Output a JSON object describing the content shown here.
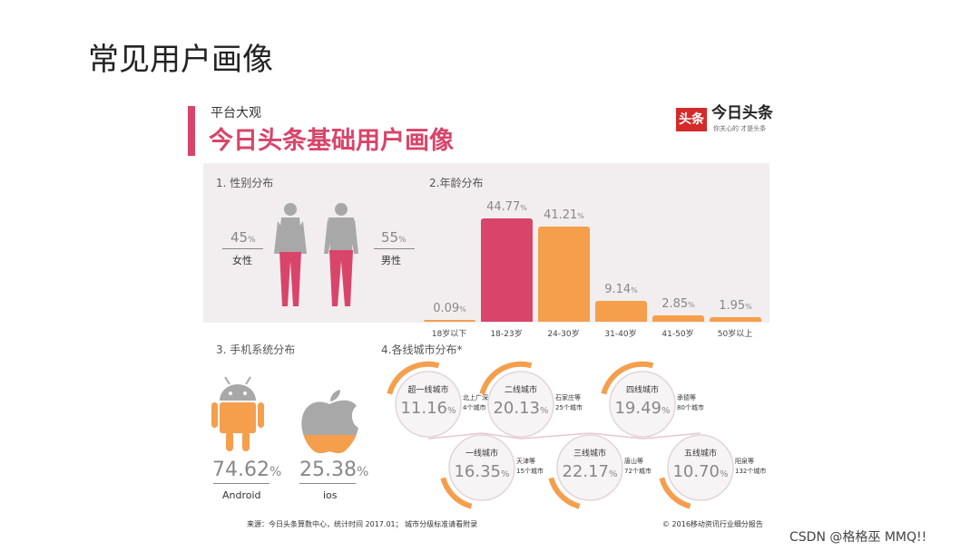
{
  "slide": {
    "title": "常见用户画像"
  },
  "header": {
    "kicker": "平台大观",
    "title": "今日头条基础用户画像"
  },
  "logo": {
    "mark": "头条",
    "name": "今日头条",
    "tagline": "你关心的 才是头条"
  },
  "gender": {
    "heading": "1. 性别分布",
    "female": {
      "value": "45",
      "unit": "%",
      "label": "女性"
    },
    "male": {
      "value": "55",
      "unit": "%",
      "label": "男性"
    }
  },
  "age": {
    "heading": "2.年龄分布"
  },
  "chart_data": {
    "type": "bar",
    "title": "2.年龄分布",
    "categories": [
      "18岁以下",
      "18-23岁",
      "24-30岁",
      "31-40岁",
      "41-50岁",
      "50岁以上"
    ],
    "values": [
      0.09,
      44.77,
      41.21,
      9.14,
      2.85,
      1.95
    ],
    "value_labels": [
      "0.09",
      "44.77",
      "41.21",
      "9.14",
      "2.85",
      "1.95"
    ],
    "unit": "%",
    "colors": [
      "#f59e4c",
      "#d9456a",
      "#f59e4c",
      "#f59e4c",
      "#f59e4c",
      "#f59e4c"
    ]
  },
  "os": {
    "heading": "3. 手机系统分布",
    "android": {
      "value": "74.62",
      "unit": "%",
      "label": "Android"
    },
    "ios": {
      "value": "25.38",
      "unit": "%",
      "label": "ios"
    }
  },
  "cities": {
    "heading": "4.各线城市分布*",
    "items": [
      {
        "name": "超一线城市",
        "value": "11.16",
        "unit": "%",
        "note1": "北上广深",
        "note2": "4个城市"
      },
      {
        "name": "一线城市",
        "value": "16.35",
        "unit": "%",
        "note1": "天津等",
        "note2": "15个城市"
      },
      {
        "name": "二线城市",
        "value": "20.13",
        "unit": "%",
        "note1": "石家庄等",
        "note2": "25个城市"
      },
      {
        "name": "三线城市",
        "value": "22.17",
        "unit": "%",
        "note1": "唐山等",
        "note2": "72个城市"
      },
      {
        "name": "四线城市",
        "value": "19.49",
        "unit": "%",
        "note1": "承德等",
        "note2": "80个城市"
      },
      {
        "name": "五线城市",
        "value": "10.70",
        "unit": "%",
        "note1": "阳泉等",
        "note2": "132个城市"
      }
    ]
  },
  "footer": {
    "source": "来源：今日头条算数中心，统计时间 2017.01；  城市分级标准请看附录",
    "copyright": "© 2016移动资讯行业细分报告"
  },
  "watermark": "CSDN @格格巫 MMQ!!",
  "colors": {
    "pink": "#d9456a",
    "orange": "#f59e4c",
    "gray": "#a8a8a8"
  }
}
